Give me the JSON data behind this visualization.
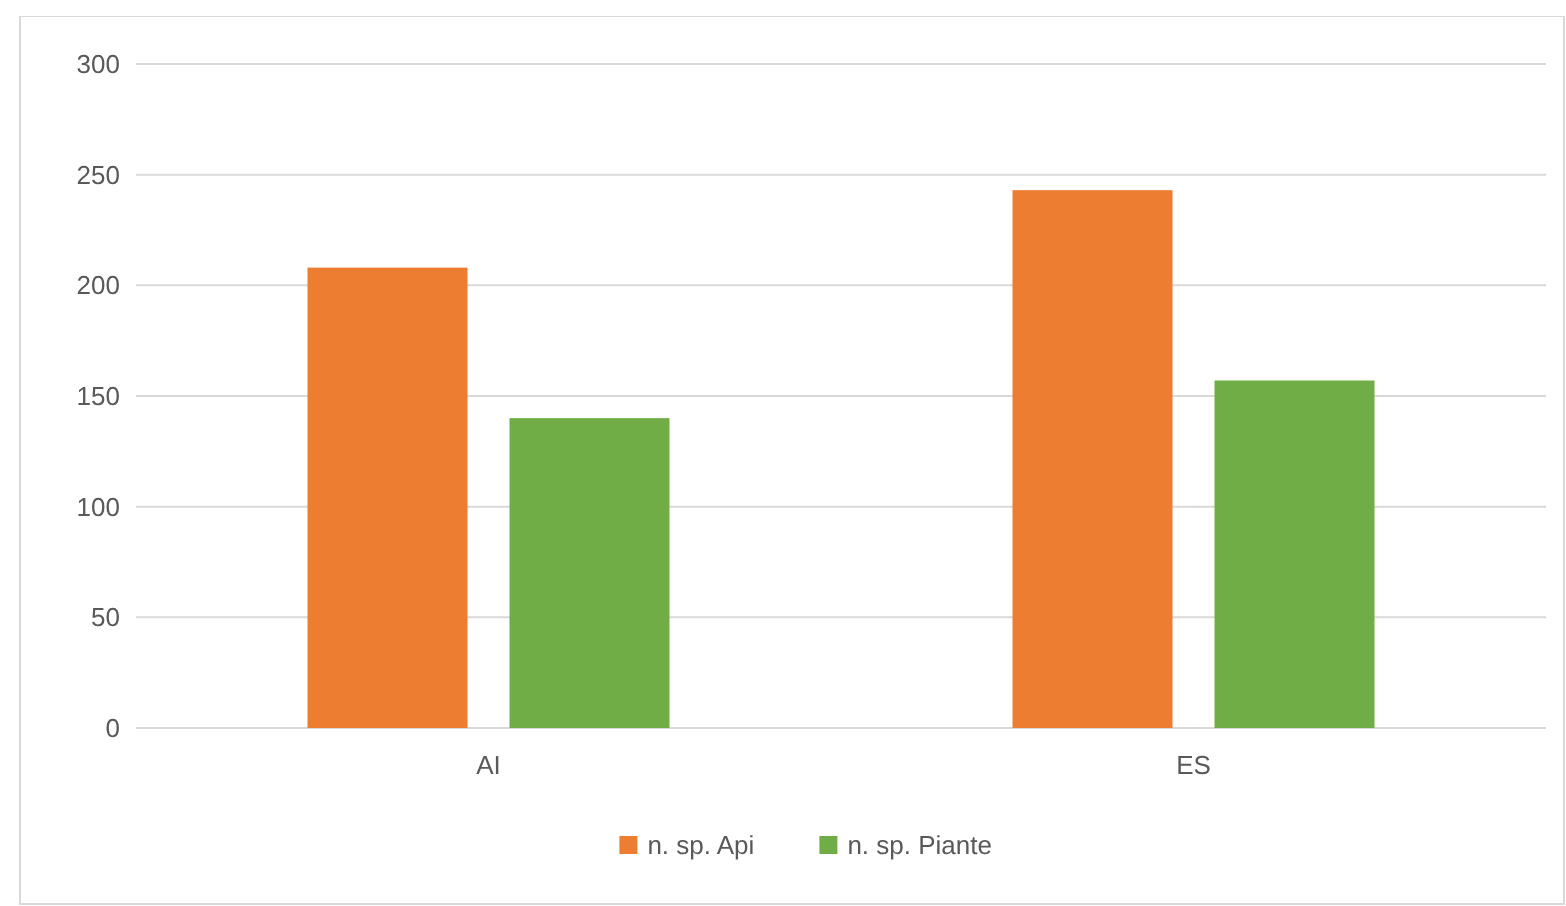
{
  "chart_data": {
    "type": "bar",
    "categories": [
      "AI",
      "ES"
    ],
    "series": [
      {
        "name": "n. sp. Api",
        "color": "#ed7d31",
        "values": [
          208,
          243
        ]
      },
      {
        "name": "n. sp. Piante",
        "color": "#70ad47",
        "values": [
          140,
          157
        ]
      }
    ],
    "ylim": [
      0,
      300
    ],
    "yticks": [
      0,
      50,
      100,
      150,
      200,
      250,
      300
    ],
    "grid": "y",
    "legend": "bottom"
  }
}
